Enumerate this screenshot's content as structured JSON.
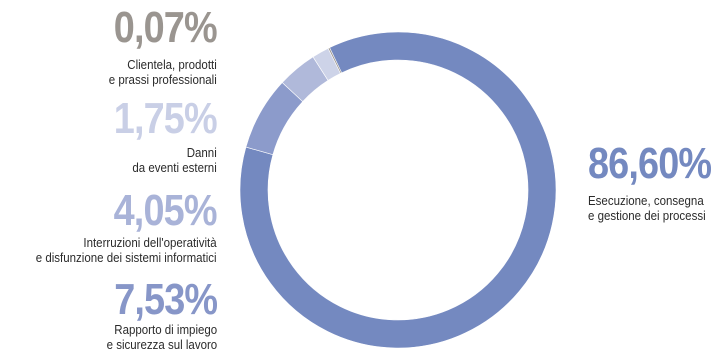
{
  "chart_data": {
    "type": "pie",
    "variant": "donut",
    "slices": [
      {
        "value_label": "86,60%",
        "value": 86.6,
        "description": [
          "Esecuzione, consegna",
          "e gestione dei processi"
        ],
        "color": "#7489c0"
      },
      {
        "value_label": "7,53%",
        "value": 7.53,
        "description": [
          "Rapporto di impiego",
          "e sicurezza sul lavoro"
        ],
        "color": "#8c9bcb"
      },
      {
        "value_label": "4,05%",
        "value": 4.05,
        "description": [
          "Interruzioni dell'operatività",
          "e disfunzione dei sistemi informatici"
        ],
        "color": "#b0b9da"
      },
      {
        "value_label": "1,75%",
        "value": 1.75,
        "description": [
          "Danni",
          "da eventi esterni"
        ],
        "color": "#cdd3e8"
      },
      {
        "value_label": "0,07%",
        "value": 0.07,
        "description": [
          "Clientela, prodotti",
          "e prassi professionali"
        ],
        "color": "#9a9590"
      }
    ]
  }
}
